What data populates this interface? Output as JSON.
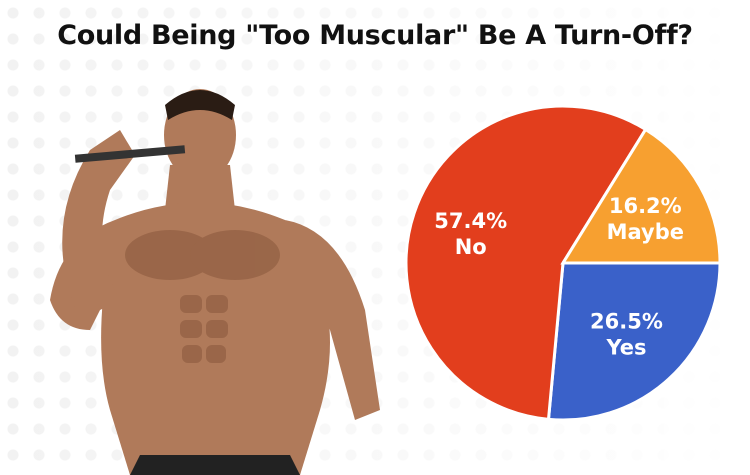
{
  "chart_data": {
    "type": "pie",
    "title": "Could Being \"Too Muscular\" Be A Turn-Off?",
    "slices": [
      {
        "label": "Yes",
        "value": 26.5,
        "value_label": "26.5%",
        "color": "#3A61C9"
      },
      {
        "label": "No",
        "value": 57.4,
        "value_label": "57.4%",
        "color": "#E23E1D"
      },
      {
        "label": "Maybe",
        "value": 16.2,
        "value_label": "16.2%",
        "color": "#F7A030"
      }
    ],
    "start_angle": "3 o'clock, clockwise"
  },
  "image": {
    "icon": "muscular-man-photo"
  }
}
